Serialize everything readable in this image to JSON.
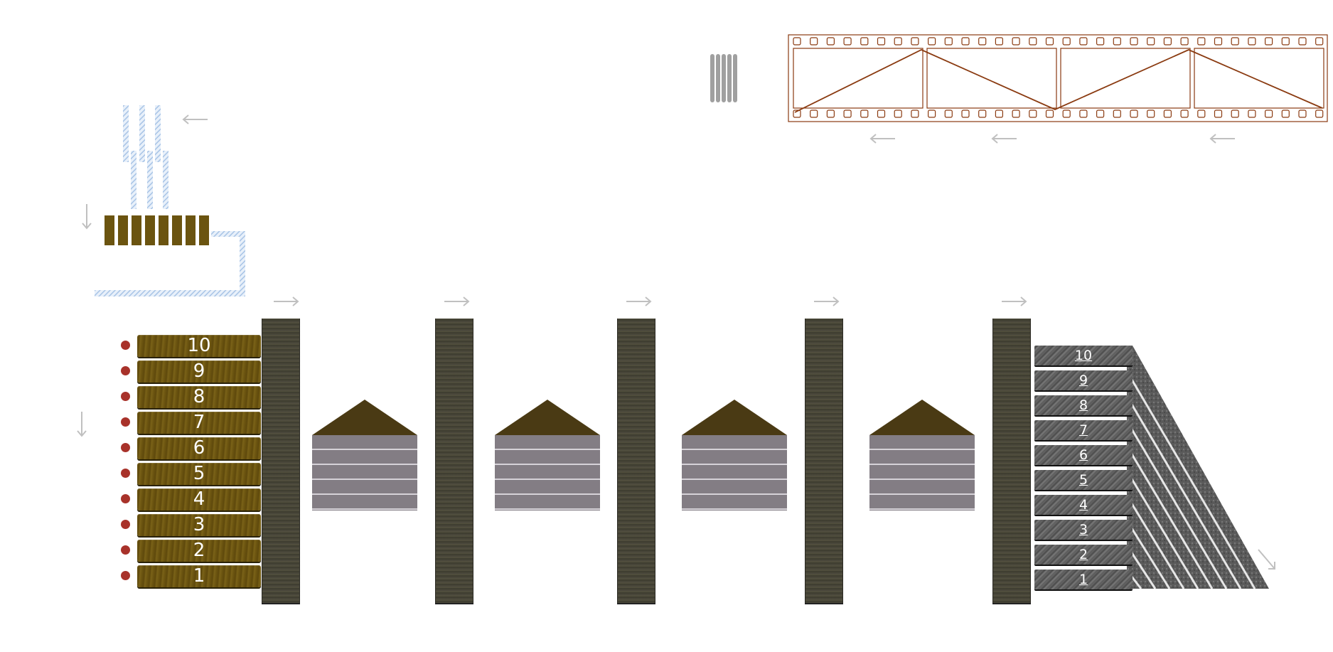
{
  "colors": {
    "background": "#ffffff",
    "brown_bar": "#6b5410",
    "red_dot": "#a8322a",
    "pillar": "#4c4a3c",
    "house_roof": "#4a3a14",
    "house_body": "#837d84",
    "gray_bar": "#555555",
    "film_strip": "#8a3a10",
    "hatched_blue": "#a8c4e6",
    "arrow_gray": "#c0c0c0"
  },
  "left_stack": {
    "labels": [
      "10",
      "9",
      "8",
      "7",
      "6",
      "5",
      "4",
      "3",
      "2",
      "1"
    ]
  },
  "right_stack": {
    "labels": [
      "10",
      "9",
      "8",
      "7",
      "6",
      "5",
      "4",
      "3",
      "2",
      "1"
    ]
  },
  "icons": {
    "arrow_left": "arrow-left-icon",
    "arrow_right": "arrow-right-icon",
    "arrow_down": "arrow-down-icon",
    "arrow_down_right": "arrow-down-right-icon"
  }
}
